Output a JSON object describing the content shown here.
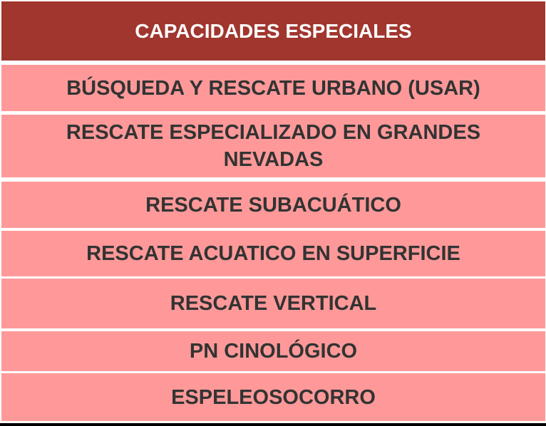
{
  "table": {
    "header": "CAPACIDADES ESPECIALES",
    "rows": [
      "BÚSQUEDA Y RESCATE URBANO (USAR)",
      "RESCATE ESPECIALIZADO EN GRANDES NEVADAS",
      "RESCATE SUBACUÁTICO",
      "RESCATE ACUATICO EN SUPERFICIE",
      "RESCATE VERTICAL",
      "PN CINOLÓGICO",
      "ESPELEOSOCORRO"
    ]
  },
  "colors": {
    "header_bg": "#A0362E",
    "row_bg": "#FF9999",
    "text": "#333333"
  }
}
